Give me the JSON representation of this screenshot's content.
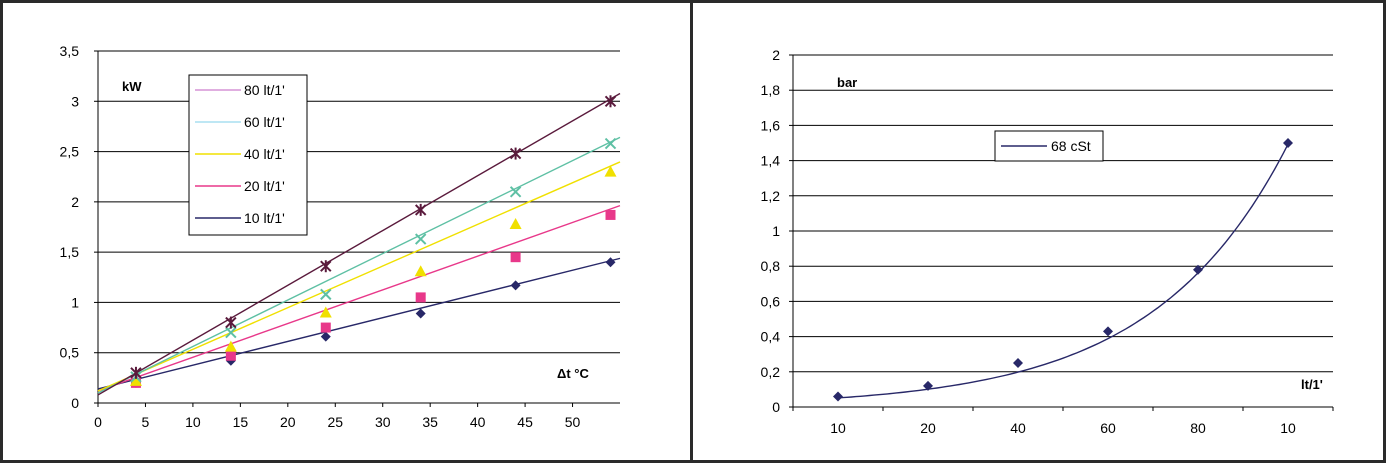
{
  "charts": [
    {
      "type": "line",
      "ylabel": "kW",
      "xlabel": "Δt °C",
      "ylim": [
        0,
        3.5
      ],
      "xlim": [
        0,
        55
      ],
      "x_ticks": [
        "0",
        "5",
        "10",
        "15",
        "20",
        "25",
        "30",
        "35",
        "40",
        "45",
        "50"
      ],
      "y_ticks": [
        "0",
        "0,5",
        "1",
        "1,5",
        "2",
        "2,5",
        "3",
        "3,5"
      ],
      "legend_placement": "top-left",
      "x": [
        4,
        14,
        24,
        34,
        44,
        54
      ],
      "series": [
        {
          "name": "80 lt/1'",
          "color": "#5a1a3c",
          "legend_color": "#d694d6",
          "marker": "asterisk",
          "values": [
            0.3,
            0.8,
            1.36,
            1.92,
            2.48,
            3.0
          ],
          "fit": [
            0.08,
            0.0545
          ]
        },
        {
          "name": "60 lt/1'",
          "color": "#5ec0a4",
          "legend_color": "#a8dff0",
          "marker": "x",
          "values": [
            0.26,
            0.7,
            1.08,
            1.63,
            2.1,
            2.58
          ],
          "fit": [
            0.1,
            0.0462
          ]
        },
        {
          "name": "40 lt/1'",
          "color": "#f0e000",
          "legend_color": "#f0e000",
          "marker": "triangle",
          "values": [
            0.22,
            0.56,
            0.9,
            1.31,
            1.78,
            2.3
          ],
          "fit": [
            0.12,
            0.0414
          ]
        },
        {
          "name": "20 lt/1'",
          "color": "#e8388a",
          "legend_color": "#e8388a",
          "marker": "square",
          "values": [
            0.2,
            0.47,
            0.75,
            1.05,
            1.45,
            1.87
          ],
          "fit": [
            0.12,
            0.0335
          ]
        },
        {
          "name": "10 lt/1'",
          "color": "#282868",
          "legend_color": "#282868",
          "marker": "diamond",
          "values": [
            0.2,
            0.42,
            0.66,
            0.89,
            1.17,
            1.4
          ],
          "fit": [
            0.14,
            0.0236
          ]
        }
      ]
    },
    {
      "type": "line",
      "ylabel": "bar",
      "xlabel": "lt/1'",
      "ylim": [
        0,
        2
      ],
      "categories": [
        "10",
        "20",
        "40",
        "60",
        "80",
        "10"
      ],
      "y_ticks": [
        "0",
        "0,2",
        "0,4",
        "0,6",
        "0,8",
        "1",
        "1,2",
        "1,4",
        "1,6",
        "1,8",
        "2"
      ],
      "legend_placement": "top-center",
      "series": [
        {
          "name": "68 cSt",
          "color": "#282868",
          "marker": "diamond",
          "values": [
            0.06,
            0.12,
            0.25,
            0.43,
            0.78,
            1.5
          ],
          "curve": [
            0.0516,
            0.673
          ]
        }
      ]
    }
  ]
}
